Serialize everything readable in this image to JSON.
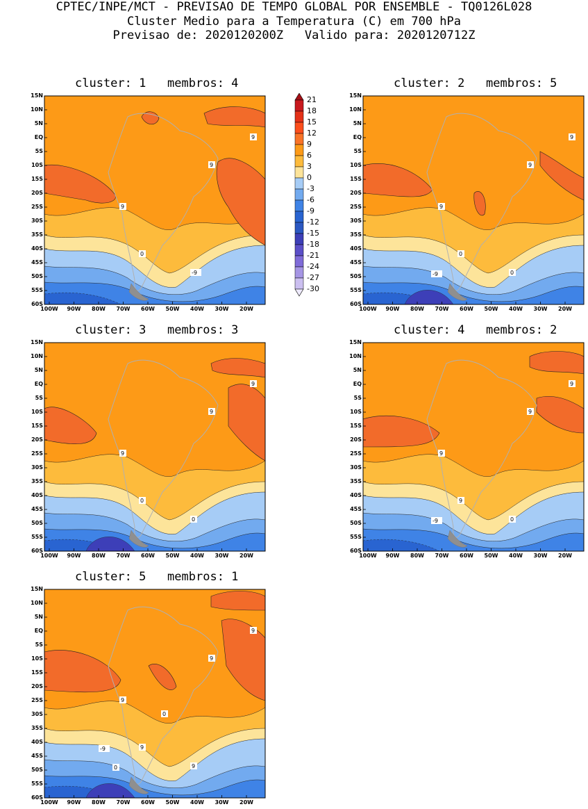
{
  "header": {
    "line1": "CPTEC/INPE/MCT - PREVISAO DE TEMPO GLOBAL POR ENSEMBLE - TQ0126L028",
    "line2": "Cluster Medio para a Temperatura (C) em 700 hPa",
    "line3": "Previsao de: 2020120200Z   Valido para: 2020120712Z"
  },
  "axes": {
    "lat_labels": [
      "15N",
      "10N",
      "5N",
      "EQ",
      "5S",
      "10S",
      "15S",
      "20S",
      "25S",
      "30S",
      "35S",
      "40S",
      "45S",
      "50S",
      "55S",
      "60S"
    ],
    "lon_labels": [
      "100W",
      "90W",
      "80W",
      "70W",
      "60W",
      "50W",
      "40W",
      "30W",
      "20W"
    ]
  },
  "colorbar": {
    "levels": [
      "21",
      "18",
      "15",
      "12",
      "9",
      "6",
      "3",
      "0",
      "-3",
      "-6",
      "-9",
      "-12",
      "-15",
      "-18",
      "-21",
      "-24",
      "-27",
      "-30"
    ],
    "colors": [
      "#a50f15",
      "#c8191e",
      "#e43118",
      "#fc4e1c",
      "#f97327",
      "#fd9a17",
      "#fdbb3c",
      "#fde49a",
      "#a6ccf6",
      "#72aaef",
      "#3f83e6",
      "#2964d1",
      "#2b58c2",
      "#3d3fb8",
      "#5b4fc8",
      "#7f6bd8",
      "#a595e4",
      "#cbbff0",
      "#eeeafd"
    ]
  },
  "panels": [
    {
      "title": "cluster: 1   membros: 4",
      "contour_labels": [
        "9",
        "9",
        "9",
        "0",
        "-9"
      ]
    },
    {
      "title": "cluster: 2   membros: 5",
      "contour_labels": [
        "9",
        "9",
        "9",
        "0",
        "0",
        "-9"
      ]
    },
    {
      "title": "cluster: 3   membros: 3",
      "contour_labels": [
        "9",
        "9",
        "9",
        "0",
        "0"
      ]
    },
    {
      "title": "cluster: 4   membros: 2",
      "contour_labels": [
        "9",
        "9",
        "9",
        "9",
        "0",
        "-9"
      ]
    },
    {
      "title": "cluster: 5   membros: 1",
      "contour_labels": [
        "9",
        "9",
        "9",
        "9",
        "9",
        "0",
        "0",
        "-9"
      ]
    }
  ]
}
